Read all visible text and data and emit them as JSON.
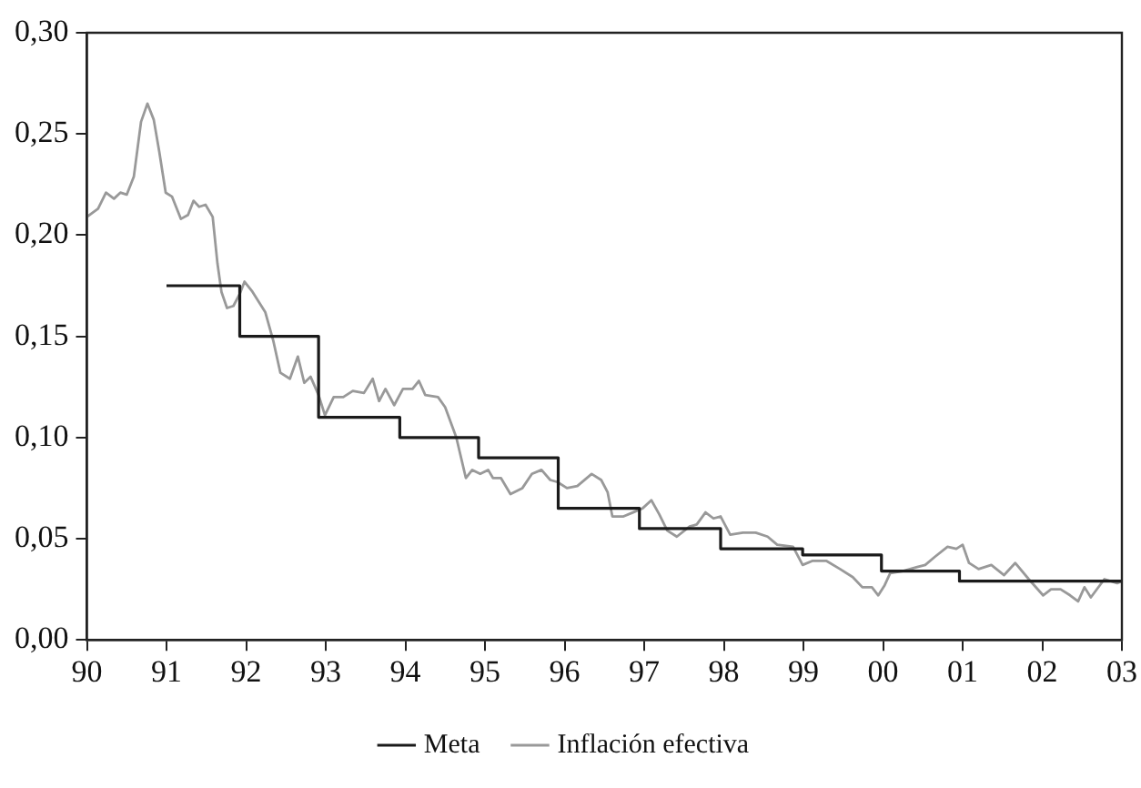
{
  "chart_data": {
    "type": "line",
    "legend": "bottom",
    "grid": false,
    "marker": "none",
    "line_style": "solid",
    "xlim": [
      1990,
      2003
    ],
    "xticks": [
      {
        "value": 1990,
        "label": "90"
      },
      {
        "value": 1991,
        "label": "91"
      },
      {
        "value": 1992,
        "label": "92"
      },
      {
        "value": 1993,
        "label": "93"
      },
      {
        "value": 1994,
        "label": "94"
      },
      {
        "value": 1995,
        "label": "95"
      },
      {
        "value": 1996,
        "label": "96"
      },
      {
        "value": 1997,
        "label": "97"
      },
      {
        "value": 1998,
        "label": "98"
      },
      {
        "value": 1999,
        "label": "99"
      },
      {
        "value": 2000,
        "label": "00"
      },
      {
        "value": 2001,
        "label": "01"
      },
      {
        "value": 2002,
        "label": "02"
      },
      {
        "value": 2003,
        "label": "03"
      }
    ],
    "ylim": [
      0,
      0.3
    ],
    "yticks": [
      {
        "value": 0,
        "label": "0,00"
      },
      {
        "value": 0.05,
        "label": "0,05"
      },
      {
        "value": 0.1,
        "label": "0,10"
      },
      {
        "value": 0.15,
        "label": "0,15"
      },
      {
        "value": 0.2,
        "label": "0,20"
      },
      {
        "value": 0.25,
        "label": "0,25"
      },
      {
        "value": 0.3,
        "label": "0,30"
      }
    ],
    "series": [
      {
        "name": "Meta",
        "type": "step",
        "color": "#1a1a1a",
        "x": [
          1991.0,
          1991.92,
          1992.91,
          1993.93,
          1994.92,
          1995.92,
          1996.94,
          1997.96,
          1998.99,
          1999.98,
          2000.96,
          2003.0
        ],
        "values": [
          0.175,
          0.15,
          0.11,
          0.1,
          0.09,
          0.065,
          0.055,
          0.045,
          0.042,
          0.034,
          0.029,
          0.029
        ]
      },
      {
        "name": "Inflación efectiva",
        "type": "line",
        "color": "#999999",
        "x": [
          1990.0,
          1990.14,
          1990.24,
          1990.34,
          1990.42,
          1990.5,
          1990.59,
          1990.68,
          1990.76,
          1990.84,
          1990.91,
          1990.99,
          1991.07,
          1991.18,
          1991.27,
          1991.34,
          1991.41,
          1991.49,
          1991.58,
          1991.64,
          1991.69,
          1991.76,
          1991.84,
          1991.92,
          1991.98,
          1992.08,
          1992.24,
          1992.34,
          1992.43,
          1992.55,
          1992.65,
          1992.73,
          1992.81,
          1992.91,
          1992.99,
          1993.1,
          1993.22,
          1993.34,
          1993.48,
          1993.59,
          1993.67,
          1993.75,
          1993.86,
          1993.97,
          1994.09,
          1994.17,
          1994.25,
          1994.41,
          1994.5,
          1994.64,
          1994.76,
          1994.84,
          1994.94,
          1995.04,
          1995.1,
          1995.2,
          1995.32,
          1995.47,
          1995.59,
          1995.71,
          1995.82,
          1995.91,
          1996.03,
          1996.16,
          1996.34,
          1996.46,
          1996.54,
          1996.6,
          1996.74,
          1996.86,
          1996.98,
          1997.09,
          1997.19,
          1997.29,
          1997.41,
          1997.57,
          1997.66,
          1997.77,
          1997.87,
          1997.96,
          1998.08,
          1998.24,
          1998.4,
          1998.55,
          1998.67,
          1998.87,
          1998.99,
          1999.11,
          1999.29,
          1999.46,
          1999.62,
          1999.74,
          1999.86,
          1999.94,
          2000.02,
          2000.09,
          2000.25,
          2000.43,
          2000.53,
          2000.65,
          2000.81,
          2000.92,
          2001.0,
          2001.08,
          2001.2,
          2001.36,
          2001.52,
          2001.66,
          2001.83,
          2002.01,
          2002.11,
          2002.23,
          2002.35,
          2002.45,
          2002.53,
          2002.61,
          2002.78,
          2002.94,
          2003.0
        ],
        "values": [
          0.209,
          0.213,
          0.221,
          0.218,
          0.221,
          0.22,
          0.229,
          0.256,
          0.265,
          0.257,
          0.241,
          0.221,
          0.219,
          0.208,
          0.21,
          0.217,
          0.214,
          0.215,
          0.209,
          0.186,
          0.172,
          0.164,
          0.165,
          0.171,
          0.177,
          0.172,
          0.162,
          0.148,
          0.132,
          0.129,
          0.14,
          0.127,
          0.13,
          0.121,
          0.111,
          0.12,
          0.12,
          0.123,
          0.122,
          0.129,
          0.118,
          0.124,
          0.116,
          0.124,
          0.124,
          0.128,
          0.121,
          0.12,
          0.115,
          0.1,
          0.08,
          0.084,
          0.082,
          0.084,
          0.08,
          0.08,
          0.072,
          0.075,
          0.082,
          0.084,
          0.079,
          0.078,
          0.075,
          0.076,
          0.082,
          0.079,
          0.073,
          0.061,
          0.061,
          0.063,
          0.065,
          0.069,
          0.062,
          0.054,
          0.051,
          0.056,
          0.057,
          0.063,
          0.06,
          0.061,
          0.052,
          0.053,
          0.053,
          0.051,
          0.047,
          0.046,
          0.037,
          0.039,
          0.039,
          0.035,
          0.031,
          0.026,
          0.026,
          0.022,
          0.027,
          0.033,
          0.034,
          0.036,
          0.037,
          0.041,
          0.046,
          0.045,
          0.047,
          0.038,
          0.035,
          0.037,
          0.032,
          0.038,
          0.03,
          0.022,
          0.025,
          0.025,
          0.022,
          0.019,
          0.026,
          0.021,
          0.03,
          0.028,
          0.029
        ]
      }
    ]
  }
}
